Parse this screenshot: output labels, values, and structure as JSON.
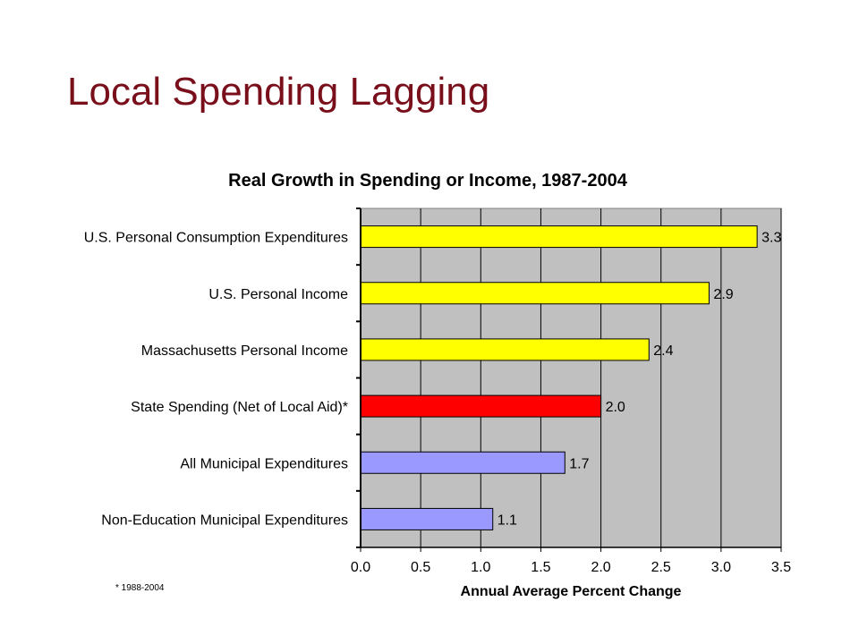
{
  "slide": {
    "title": "Local Spending Lagging",
    "footnote": "* 1988-2004"
  },
  "colors": {
    "title": "#7a0f1c",
    "plot_bg": "#c0c0c0"
  },
  "chart_data": {
    "type": "bar",
    "orientation": "horizontal",
    "title": "Real Growth in Spending or Income, 1987-2004",
    "xlabel": "Annual Average Percent Change",
    "ylabel": "",
    "xlim": [
      0,
      3.5
    ],
    "xticks": [
      "0.0",
      "0.5",
      "1.0",
      "1.5",
      "2.0",
      "2.5",
      "3.0",
      "3.5"
    ],
    "grid": true,
    "legend": "none",
    "categories": [
      "U.S. Personal Consumption Expenditures",
      "U.S. Personal Income",
      "Massachusetts Personal Income",
      "State Spending (Net of Local Aid)*",
      "All Municipal Expenditures",
      "Non-Education Municipal Expenditures"
    ],
    "values": [
      3.3,
      2.9,
      2.4,
      2.0,
      1.7,
      1.1
    ],
    "value_labels": [
      "3.3",
      "2.9",
      "2.4",
      "2.0",
      "1.7",
      "1.1"
    ],
    "bar_colors": [
      "#ffff00",
      "#ffff00",
      "#ffff00",
      "#ff0000",
      "#9999ff",
      "#9999ff"
    ]
  }
}
